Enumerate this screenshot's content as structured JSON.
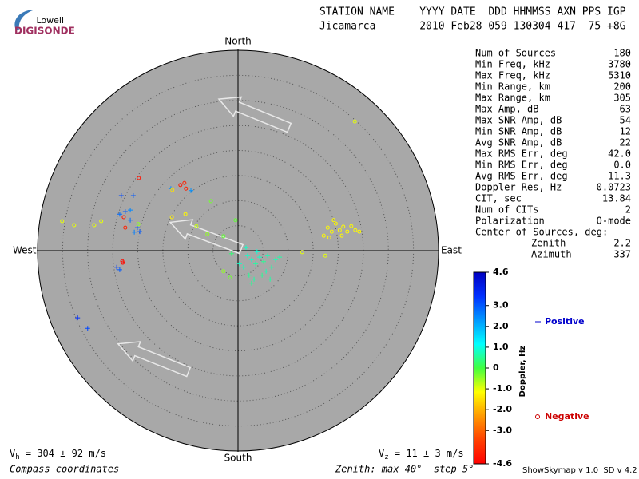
{
  "logo": {
    "top": "Lowell",
    "bottom": "DIGISONDE"
  },
  "header": {
    "line1": "STATION NAME    YYYY DATE  DDD HHMMSS AXN PPS IGP",
    "line2": "Jicamarca       2010 Feb28 059 130304 417  75 +8G"
  },
  "stats": {
    "rows": [
      [
        "Num of Sources",
        "180"
      ],
      [
        "Min Freq, kHz",
        "3780"
      ],
      [
        "Max Freq, kHz",
        "5310"
      ],
      [
        "Min Range, km",
        "200"
      ],
      [
        "Max Range, km",
        "305"
      ],
      [
        "Max Amp, dB",
        "63"
      ],
      [
        "Max SNR Amp, dB",
        "54"
      ],
      [
        "Min SNR Amp, dB",
        "12"
      ],
      [
        "Avg SNR Amp, dB",
        "22"
      ],
      [
        "Max RMS Err, deg",
        "42.0"
      ],
      [
        "Min RMS Err, deg",
        "0.0"
      ],
      [
        "Avg RMS Err, deg",
        "11.3"
      ],
      [
        "Doppler Res, Hz",
        "0.0723"
      ],
      [
        "CIT, sec",
        "13.84"
      ],
      [
        "Num of CITs",
        "2"
      ],
      [
        "Polarization",
        "O-mode"
      ]
    ],
    "center_title": "Center of Sources, deg:",
    "center_rows": [
      [
        "Zenith",
        "2.2"
      ],
      [
        "Azimuth",
        "337"
      ]
    ]
  },
  "footer": {
    "vh": {
      "symbol": "V",
      "sub": "h",
      "text": " = 304 ± 92 m/s"
    },
    "vz": {
      "symbol": "V",
      "sub": "z",
      "text": " = 11 ± 3 m/s"
    },
    "left": "Compass coordinates",
    "center": "Zenith: max 40°  step 5°",
    "right": "ShowSkymap v 1.0  SD v 4.2"
  },
  "chart_data": {
    "type": "skymap",
    "directions": {
      "north": "North",
      "south": "South",
      "east": "East",
      "west": "West"
    },
    "rlim": [
      0,
      40
    ],
    "rticks": [
      5,
      10,
      15,
      20,
      25,
      30,
      35,
      40
    ],
    "colorbar": {
      "label": "Doppler, Hz",
      "vlim": [
        -4.6,
        4.6
      ],
      "colors": [
        "#ff0000",
        "#ff4000",
        "#ff9900",
        "#ffff00",
        "#40ff40",
        "#00ffff",
        "#0099ff",
        "#0030ff",
        "#0000c0"
      ],
      "ticks": [
        4.6,
        {
          "value": 3,
          "label": "3.0"
        },
        {
          "value": 2,
          "label": "2.0"
        },
        {
          "value": 1,
          "label": "1.0"
        },
        0,
        {
          "value": -1,
          "label": "-1.0"
        },
        {
          "value": -2,
          "label": "-2.0"
        },
        {
          "value": -3,
          "label": "-3.0"
        },
        -4.6
      ]
    },
    "series": [
      {
        "name": "Positive",
        "marker": "plus",
        "color": "#0000cc",
        "x": [
          -23.3,
          -20.9,
          -23.6,
          -22.5,
          -21.5,
          -20.1,
          -19.6,
          -20.7,
          -24.2,
          -23.6,
          -32.0,
          -30.0,
          -9.4,
          -13.4,
          -21.5,
          1.9,
          2.7,
          3.5,
          4.3,
          5.1,
          5.9,
          6.7,
          7.5,
          8.3,
          1.1,
          2.2,
          3.2,
          4.8,
          6.4,
          0.3,
          -1.3,
          1.6,
          3.8,
          2.7,
          5.6
        ],
        "y": [
          11.0,
          11.0,
          7.3,
          7.8,
          8.1,
          4.6,
          3.8,
          3.7,
          -3.3,
          -3.8,
          -13.4,
          -15.5,
          12.0,
          12.4,
          6.1,
          -1.0,
          -1.8,
          -2.6,
          -1.3,
          -2.2,
          -1.0,
          -3.3,
          -1.8,
          -1.3,
          -3.3,
          -4.9,
          -5.7,
          -4.9,
          -5.7,
          -2.6,
          -0.6,
          0.6,
          -0.2,
          -6.5,
          -4.1
        ],
        "doppler": [
          3.2,
          3.0,
          2.8,
          3.0,
          2.5,
          3.0,
          3.0,
          2.6,
          3.3,
          3.0,
          3.5,
          3.2,
          2.4,
          2.5,
          2.8,
          0.8,
          0.8,
          0.6,
          0.8,
          0.5,
          0.7,
          0.6,
          0.7,
          0.6,
          0.7,
          0.5,
          0.6,
          0.5,
          0.6,
          0.8,
          0.3,
          0.8,
          0.9,
          0.5,
          0.7
        ]
      },
      {
        "name": "Negative",
        "marker": "circle",
        "color": "#cc0000",
        "x": [
          17.9,
          18.7,
          19.5,
          20.3,
          21.0,
          21.8,
          22.6,
          23.4,
          17.1,
          18.2,
          24.2,
          19.1,
          20.7,
          23.3,
          -35.1,
          -32.7,
          -28.7,
          -27.3,
          17.4,
          12.8,
          -19.8,
          -11.5,
          -10.7,
          -10.4,
          -22.8,
          -22.5,
          -23.1,
          -23.0,
          -13.1,
          -10.5,
          -8.3,
          -6.1,
          -2.9,
          -5.4,
          -0.5,
          -1.6,
          -2.9,
          -13.2,
          -19.9
        ],
        "y": [
          4.6,
          3.8,
          5.4,
          4.1,
          4.8,
          3.8,
          4.9,
          4.1,
          3.0,
          2.6,
          3.8,
          6.1,
          3.0,
          25.8,
          5.9,
          5.1,
          5.1,
          5.9,
          -1.0,
          -0.3,
          14.5,
          13.1,
          13.5,
          12.4,
          6.7,
          4.6,
          -2.1,
          -2.4,
          12.1,
          7.3,
          4.9,
          3.3,
          2.9,
          9.9,
          6.1,
          -5.4,
          -4.1,
          6.7,
          5.3
        ],
        "doppler": [
          -1.2,
          -1.2,
          -1.2,
          -1.2,
          -1.2,
          -1.2,
          -1.2,
          -1.2,
          -1.2,
          -1.2,
          -1.2,
          -1.2,
          -1.2,
          -1.0,
          -1.0,
          -1.0,
          -1.0,
          -1.0,
          -1.0,
          -1.0,
          -4.3,
          -4.2,
          -4.0,
          -4.0,
          -4.2,
          -4.0,
          -4.4,
          -4.4,
          -1.5,
          -1.2,
          -0.8,
          -0.5,
          -0.2,
          -0.3,
          -0.2,
          -0.3,
          -0.5,
          -1.3,
          -0.5
        ]
      }
    ]
  }
}
